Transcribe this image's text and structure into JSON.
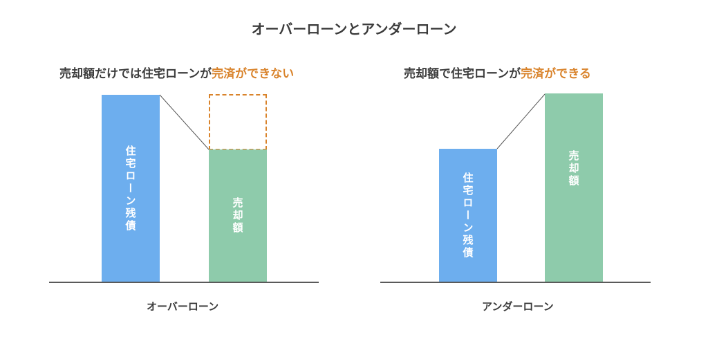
{
  "title": "オーバーローンとアンダーローン",
  "left": {
    "heading_prefix": "売却額だけでは住宅ローンが",
    "heading_accent": "完済",
    "heading_suffix": "ができない",
    "bar_loan_label": "住宅ローン残債",
    "bar_sale_label": "売却額",
    "axis_label": "オーバーローン"
  },
  "right": {
    "heading_prefix": "売却額で住宅ローンが",
    "heading_accent": "完済",
    "heading_suffix": "ができる",
    "bar_loan_label": "住宅ローン残債",
    "bar_sale_label": "売却額",
    "axis_label": "アンダーローン"
  },
  "colors": {
    "loan": "#6daeee",
    "sale": "#8ecbab",
    "accent": "#d9832b",
    "text": "#3c3c3c"
  }
}
